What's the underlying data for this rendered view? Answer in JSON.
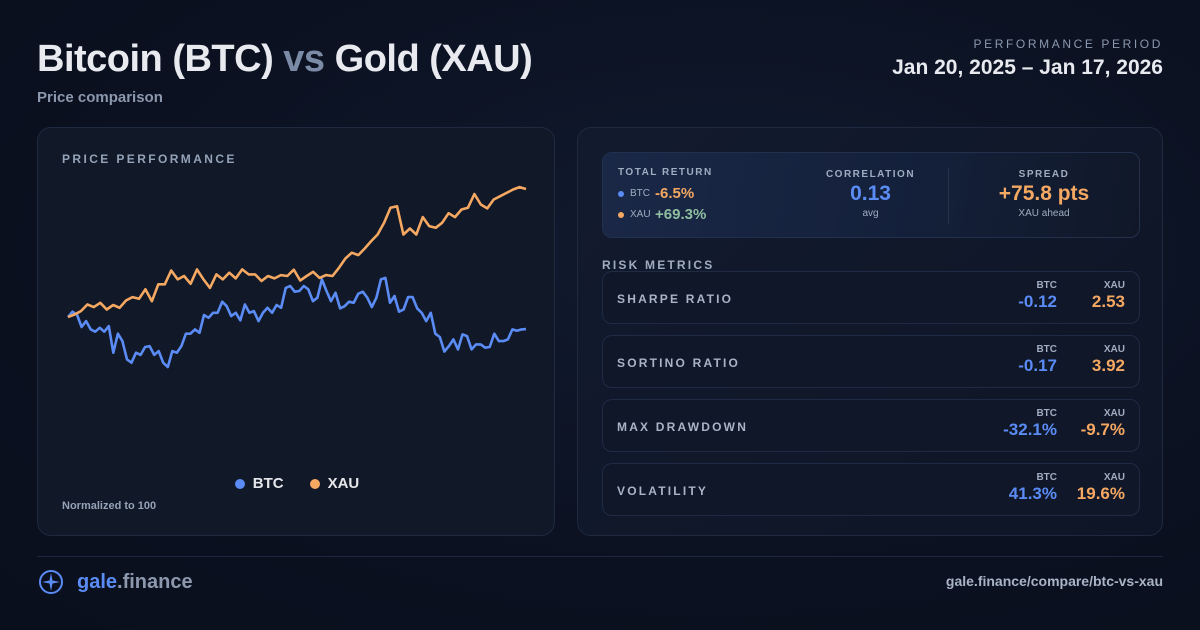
{
  "header": {
    "title_a": "Bitcoin (BTC)",
    "title_vs": "vs",
    "title_b": "Gold (XAU)",
    "subtitle": "Price comparison",
    "period_label": "PERFORMANCE PERIOD",
    "period": "Jan 20, 2025 – Jan 17, 2026"
  },
  "colors": {
    "btc": "#5b8cf5",
    "xau": "#f5a862",
    "positive": "#8fbfa0",
    "background": "#0b1120"
  },
  "chart_data": {
    "type": "line",
    "title": "PRICE PERFORMANCE",
    "note": "Normalized to 100",
    "ylim": [
      70,
      172
    ],
    "grid": false,
    "legend": "bottom",
    "series": [
      {
        "name": "BTC",
        "color": "#5b8cf5",
        "values": [
          100,
          102.9,
          101.1,
          94.6,
          97.8,
          93.3,
          92.1,
          94.2,
          92.1,
          95.1,
          80.7,
          91.0,
          87.0,
          77.1,
          75.3,
          80.7,
          79.5,
          83.8,
          84.3,
          79.5,
          81.6,
          75.3,
          73.0,
          81.6,
          80.7,
          84.3,
          91.0,
          91.0,
          93.3,
          91.5,
          101.1,
          99.6,
          102.3,
          102.3,
          108.3,
          105.9,
          100.5,
          102.3,
          98.2,
          106.8,
          102.3,
          103.2,
          97.8,
          102.3,
          105.0,
          102.3,
          106.5,
          105.0,
          115.8,
          116.8,
          113.7,
          114.1,
          116.8,
          115.0,
          108.6,
          110.5,
          120.4,
          114.1,
          108.6,
          113.2,
          104.7,
          105.9,
          108.3,
          107.7,
          112.6,
          113.7,
          110.5,
          105.4,
          110.5,
          120.4,
          121.2,
          107.7,
          111.4,
          102.9,
          104.1,
          110.8,
          110.8,
          104.7,
          102.3,
          97.8,
          102.3,
          91.0,
          89.2,
          81.3,
          84.3,
          87.9,
          82.5,
          90.6,
          89.7,
          82.5,
          85.2,
          85.2,
          83.4,
          83.8,
          91.0,
          87.0,
          87.0,
          87.9,
          93.3,
          92.6,
          93.3,
          93.5
        ]
      },
      {
        "name": "XAU",
        "color": "#f5a862",
        "values": [
          100,
          101.4,
          103.2,
          106.8,
          105.4,
          107.7,
          104.1,
          106.5,
          105.0,
          109.0,
          110.8,
          109.9,
          115.0,
          108.6,
          117.7,
          117.7,
          125.2,
          120.4,
          122.2,
          118.0,
          125.8,
          120.4,
          115.8,
          123.1,
          120.4,
          124.0,
          120.9,
          125.8,
          123.1,
          123.1,
          119.5,
          122.2,
          120.9,
          122.7,
          122.2,
          125.6,
          119.8,
          122.2,
          124.5,
          121.2,
          122.7,
          122.2,
          126.6,
          131.7,
          134.8,
          133.5,
          137.1,
          141.1,
          144.7,
          151.0,
          159.1,
          160.0,
          144.7,
          147.9,
          144.7,
          154.1,
          149.2,
          148.3,
          151.0,
          156.2,
          154.1,
          158.2,
          159.1,
          166.6,
          160.9,
          158.8,
          163.6,
          165.4,
          167.2,
          169.0,
          170.3,
          169.3
        ]
      }
    ]
  },
  "summary": {
    "total_return_label": "TOTAL RETURN",
    "btc_ticker": "BTC",
    "btc_return": "-6.5%",
    "xau_ticker": "XAU",
    "xau_return": "+69.3%",
    "correlation_label": "CORRELATION",
    "correlation": "0.13",
    "correlation_sub": "avg",
    "spread_label": "SPREAD",
    "spread": "+75.8 pts",
    "spread_sub": "XAU ahead"
  },
  "risk": {
    "label": "RISK METRICS",
    "col_btc": "BTC",
    "col_xau": "XAU",
    "metrics": [
      {
        "name": "SHARPE RATIO",
        "btc": "-0.12",
        "xau": "2.53"
      },
      {
        "name": "SORTINO RATIO",
        "btc": "-0.17",
        "xau": "3.92"
      },
      {
        "name": "MAX DRAWDOWN",
        "btc": "-32.1%",
        "xau": "-9.7%"
      },
      {
        "name": "VOLATILITY",
        "btc": "41.3%",
        "xau": "19.6%"
      }
    ]
  },
  "footer": {
    "brand_a": "gale",
    "brand_b": ".finance",
    "url": "gale.finance/compare/btc-vs-xau"
  }
}
